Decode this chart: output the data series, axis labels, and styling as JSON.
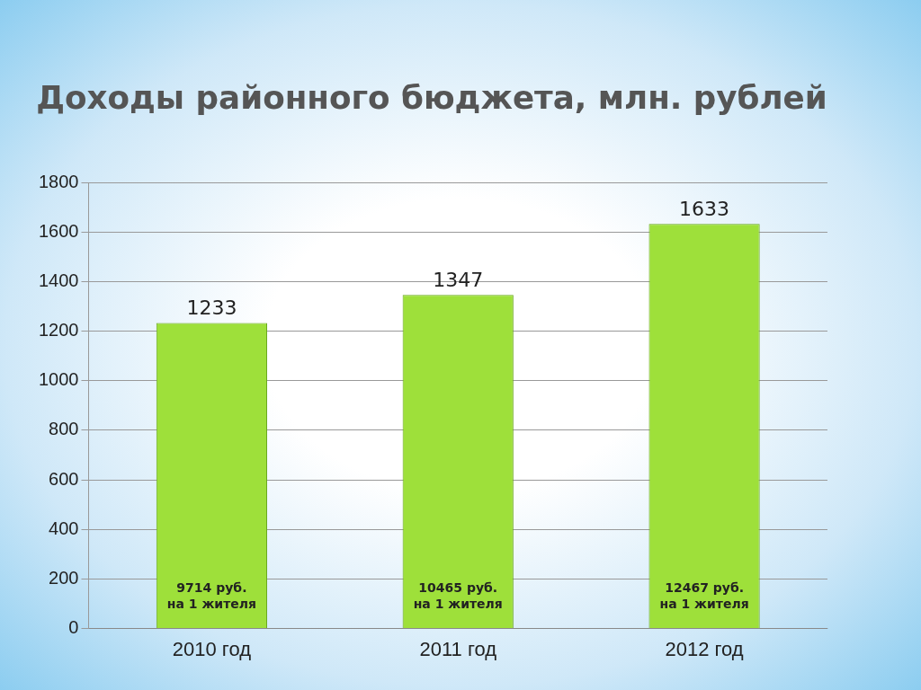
{
  "chart_data": {
    "type": "bar",
    "title": "Доходы районного бюджета, млн. рублей",
    "categories": [
      "2010 год",
      "2011 год",
      "2012 год"
    ],
    "values": [
      1233,
      1347,
      1633
    ],
    "color": "#9ee03a",
    "data_labels": true,
    "ylim": [
      0,
      1800
    ],
    "yticks": [
      0,
      200,
      400,
      600,
      800,
      1000,
      1200,
      1400,
      1600,
      1800
    ],
    "grid": "y",
    "legend": false,
    "annotations": [
      "9714 руб.\nна 1 жителя",
      "10465 руб.\nна 1 жителя",
      "12467 руб.\nна 1 жителя"
    ]
  }
}
